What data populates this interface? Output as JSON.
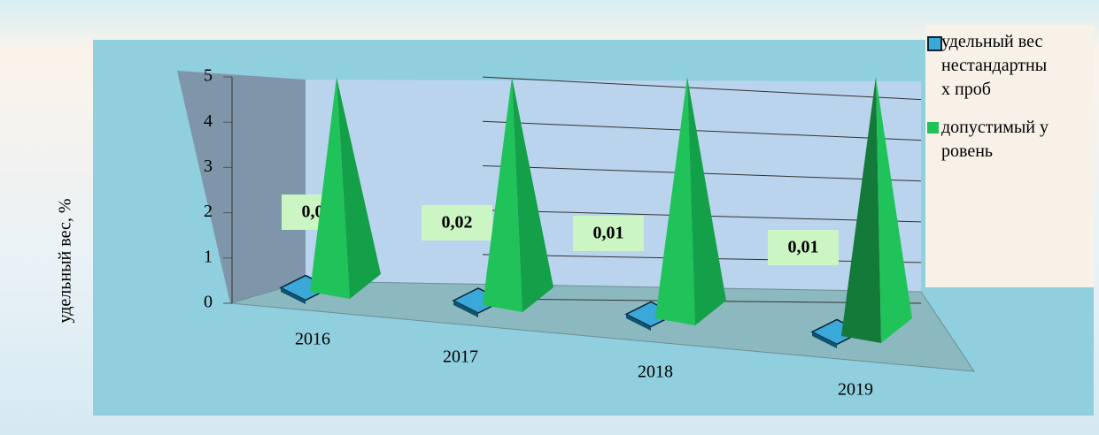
{
  "chart_data": {
    "type": "pyramid3d",
    "ylabel": "удельный вес, %",
    "categories": [
      "2016",
      "2017",
      "2018",
      "2019"
    ],
    "series": [
      {
        "name": "удельный вес нестандартных проб",
        "color": "#3aa8d8",
        "values": [
          0.01,
          0.02,
          0.01,
          0.01
        ],
        "value_labels": [
          "0,01",
          "0,02",
          "0,01",
          "0,01"
        ]
      },
      {
        "name": "допустимый уровень",
        "color": "#1fc35a",
        "values": [
          5,
          5,
          5,
          5
        ]
      }
    ],
    "ylim": [
      0,
      5
    ],
    "yticks": [
      0,
      1,
      2,
      3,
      4,
      5
    ],
    "grid": true,
    "legend": "right"
  }
}
